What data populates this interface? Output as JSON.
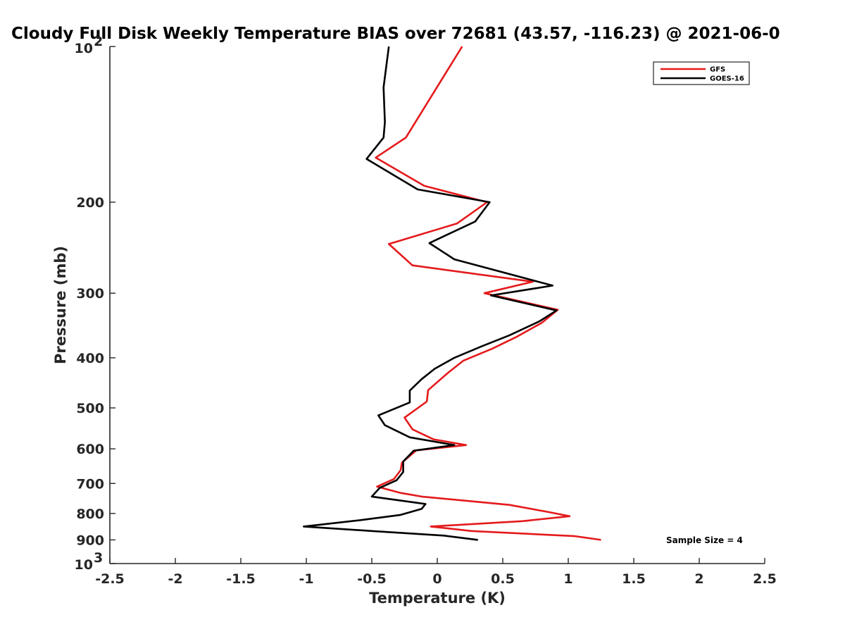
{
  "chart_data": {
    "type": "line",
    "title": "Cloudy Full Disk Weekly Temperature BIAS over 72681 (43.57, -116.23) @ 2021-06-0",
    "xlabel": "Temperature (K)",
    "ylabel": "Pressure (mb)",
    "xlim": [
      -2.5,
      2.5
    ],
    "ylim": [
      1000,
      100
    ],
    "yscale": "log",
    "y_reversed": true,
    "grid": false,
    "legend_position": "top-right",
    "x_ticks": [
      {
        "value": -2.5,
        "label": "-2.5"
      },
      {
        "value": -2,
        "label": "-2"
      },
      {
        "value": -1.5,
        "label": "-1.5"
      },
      {
        "value": -1,
        "label": "-1"
      },
      {
        "value": -0.5,
        "label": "-0.5"
      },
      {
        "value": 0,
        "label": "0"
      },
      {
        "value": 0.5,
        "label": "0.5"
      },
      {
        "value": 1,
        "label": "1"
      },
      {
        "value": 1.5,
        "label": "1.5"
      },
      {
        "value": 2,
        "label": "2"
      },
      {
        "value": 2.5,
        "label": "2.5"
      }
    ],
    "y_ticks": [
      {
        "value": 200,
        "label": "200"
      },
      {
        "value": 300,
        "label": "300"
      },
      {
        "value": 400,
        "label": "400"
      },
      {
        "value": 500,
        "label": "500"
      },
      {
        "value": 600,
        "label": "600"
      },
      {
        "value": 700,
        "label": "700"
      },
      {
        "value": 800,
        "label": "800"
      },
      {
        "value": 900,
        "label": "900"
      }
    ],
    "y_power_ticks": [
      {
        "value": 100,
        "base": "10",
        "exponent": "2"
      },
      {
        "value": 1000,
        "base": "10",
        "exponent": "3"
      }
    ],
    "series": [
      {
        "name": "GFS",
        "color": "#e41a1c",
        "points": [
          {
            "x": 0.19,
            "y": 100
          },
          {
            "x": -0.24,
            "y": 150
          },
          {
            "x": -0.47,
            "y": 164
          },
          {
            "x": -0.1,
            "y": 186
          },
          {
            "x": 0.38,
            "y": 200
          },
          {
            "x": 0.15,
            "y": 220
          },
          {
            "x": -0.37,
            "y": 241
          },
          {
            "x": -0.19,
            "y": 265
          },
          {
            "x": 0.73,
            "y": 285
          },
          {
            "x": 0.36,
            "y": 300
          },
          {
            "x": 0.92,
            "y": 323
          },
          {
            "x": 0.8,
            "y": 342
          },
          {
            "x": 0.6,
            "y": 365
          },
          {
            "x": 0.42,
            "y": 384
          },
          {
            "x": 0.2,
            "y": 405
          },
          {
            "x": 0.08,
            "y": 428
          },
          {
            "x": -0.07,
            "y": 462
          },
          {
            "x": -0.08,
            "y": 486
          },
          {
            "x": -0.25,
            "y": 522
          },
          {
            "x": -0.19,
            "y": 550
          },
          {
            "x": -0.03,
            "y": 575
          },
          {
            "x": 0.22,
            "y": 590
          },
          {
            "x": -0.16,
            "y": 604
          },
          {
            "x": -0.27,
            "y": 638
          },
          {
            "x": -0.28,
            "y": 660
          },
          {
            "x": -0.33,
            "y": 686
          },
          {
            "x": -0.46,
            "y": 710
          },
          {
            "x": -0.28,
            "y": 730
          },
          {
            "x": -0.12,
            "y": 742
          },
          {
            "x": 0.55,
            "y": 770
          },
          {
            "x": 0.85,
            "y": 795
          },
          {
            "x": 1.01,
            "y": 810
          },
          {
            "x": 0.65,
            "y": 828
          },
          {
            "x": -0.05,
            "y": 848
          },
          {
            "x": 0.26,
            "y": 865
          },
          {
            "x": 1.05,
            "y": 885
          },
          {
            "x": 1.25,
            "y": 900
          }
        ]
      },
      {
        "name": "GOES-16",
        "color": "#000000",
        "points": [
          {
            "x": -0.37,
            "y": 100
          },
          {
            "x": -0.41,
            "y": 120
          },
          {
            "x": -0.4,
            "y": 140
          },
          {
            "x": -0.41,
            "y": 150
          },
          {
            "x": -0.54,
            "y": 165
          },
          {
            "x": -0.15,
            "y": 189
          },
          {
            "x": 0.4,
            "y": 200
          },
          {
            "x": 0.29,
            "y": 218
          },
          {
            "x": -0.06,
            "y": 240
          },
          {
            "x": 0.13,
            "y": 258
          },
          {
            "x": 0.88,
            "y": 290
          },
          {
            "x": 0.41,
            "y": 303
          },
          {
            "x": 0.91,
            "y": 324
          },
          {
            "x": 0.78,
            "y": 340
          },
          {
            "x": 0.55,
            "y": 362
          },
          {
            "x": 0.34,
            "y": 380
          },
          {
            "x": 0.13,
            "y": 400
          },
          {
            "x": -0.02,
            "y": 420
          },
          {
            "x": -0.12,
            "y": 440
          },
          {
            "x": -0.21,
            "y": 463
          },
          {
            "x": -0.21,
            "y": 488
          },
          {
            "x": -0.45,
            "y": 517
          },
          {
            "x": -0.4,
            "y": 540
          },
          {
            "x": -0.21,
            "y": 570
          },
          {
            "x": 0.13,
            "y": 590
          },
          {
            "x": -0.18,
            "y": 605
          },
          {
            "x": -0.26,
            "y": 635
          },
          {
            "x": -0.26,
            "y": 665
          },
          {
            "x": -0.31,
            "y": 690
          },
          {
            "x": -0.44,
            "y": 714
          },
          {
            "x": -0.5,
            "y": 742
          },
          {
            "x": -0.09,
            "y": 767
          },
          {
            "x": -0.12,
            "y": 784
          },
          {
            "x": -0.28,
            "y": 805
          },
          {
            "x": -0.6,
            "y": 825
          },
          {
            "x": -1.02,
            "y": 848
          },
          {
            "x": -0.5,
            "y": 865
          },
          {
            "x": 0.05,
            "y": 883
          },
          {
            "x": 0.31,
            "y": 900
          }
        ]
      }
    ],
    "annotations": [
      {
        "text": "Sample Size = 4",
        "position": "bottom-right"
      }
    ]
  }
}
